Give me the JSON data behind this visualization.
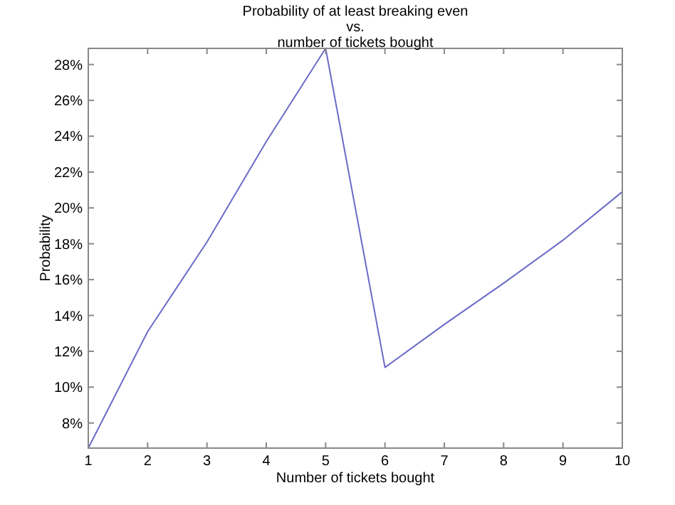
{
  "chart_data": {
    "type": "line",
    "title": "Probability of at least breaking even\nvs.\nnumber of tickets bought",
    "xlabel": "Number of tickets bought",
    "ylabel": "Probability",
    "x": [
      1,
      2,
      3,
      4,
      5,
      6,
      7,
      8,
      9,
      10
    ],
    "series": [
      {
        "color": "#6b6bc8",
        "values": [
          6.6,
          13.1,
          18.1,
          23.7,
          28.9,
          11.1,
          13.5,
          15.8,
          18.2,
          20.9
        ]
      }
    ],
    "xlim": [
      1,
      10
    ],
    "xticks": [
      1,
      2,
      3,
      4,
      5,
      6,
      7,
      8,
      9,
      10
    ],
    "ylim": [
      6.6,
      28.9
    ],
    "yticks": [
      {
        "value": 8,
        "label": "8%"
      },
      {
        "value": 10,
        "label": "10%"
      },
      {
        "value": 12,
        "label": "12%"
      },
      {
        "value": 14,
        "label": "14%"
      },
      {
        "value": 16,
        "label": "16%"
      },
      {
        "value": 18,
        "label": "18%"
      },
      {
        "value": 20,
        "label": "20%"
      },
      {
        "value": 22,
        "label": "22%"
      },
      {
        "value": 24,
        "label": "24%"
      },
      {
        "value": 26,
        "label": "26%"
      },
      {
        "value": 28,
        "label": "28%"
      }
    ],
    "grid": false,
    "marker": "none",
    "line_style": "solid"
  }
}
